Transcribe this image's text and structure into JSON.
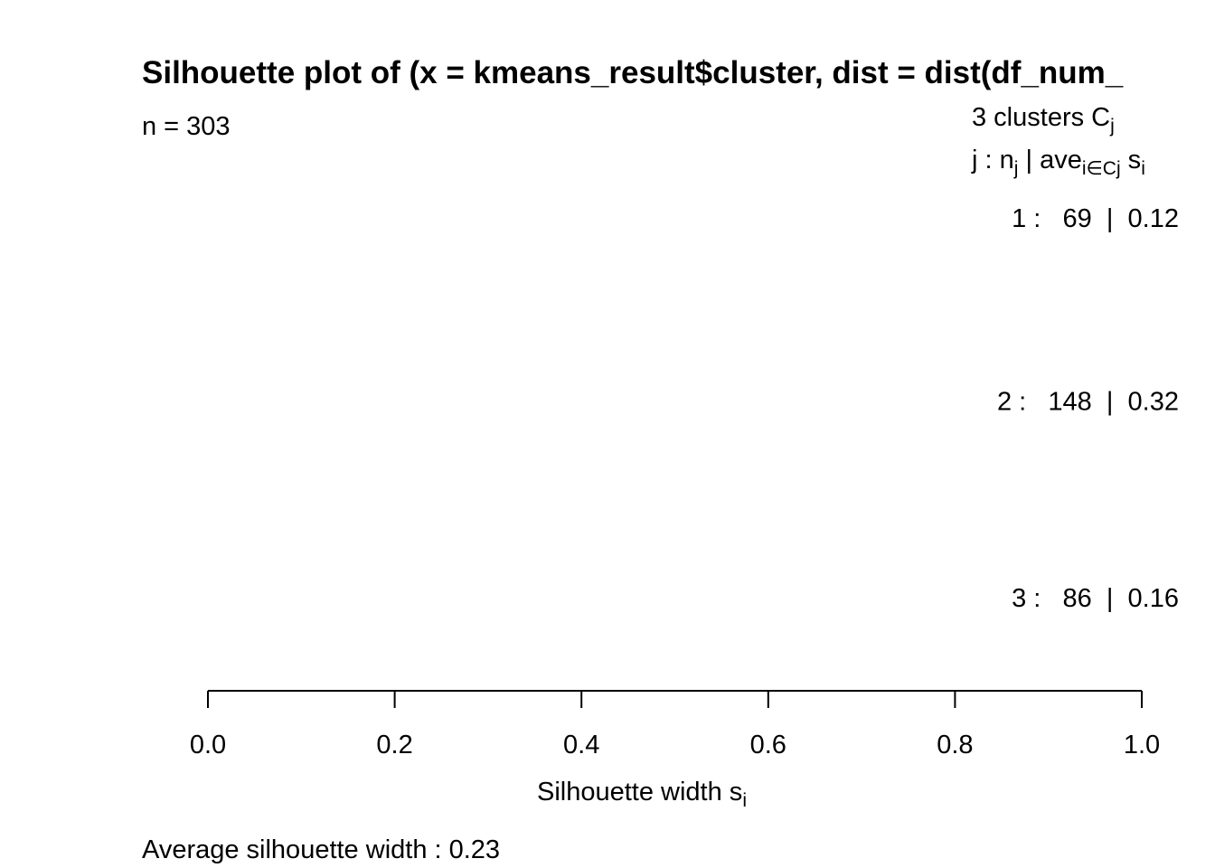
{
  "chart_data": {
    "type": "silhouette",
    "title": "Silhouette plot of (x = kmeans_result$cluster, dist = dist(df_num_",
    "subtitle": "n = 303",
    "cluster_header": [
      "3  clusters  C",
      "j"
    ],
    "column_header": [
      "j :  n",
      "j",
      " | ave",
      "i∈Cj",
      "  s",
      "i"
    ],
    "categories": [
      "1",
      "2",
      "3"
    ],
    "sizes": [
      69,
      148,
      86
    ],
    "values": [
      0.12,
      0.32,
      0.16
    ],
    "value_labels": [
      "1 :   69  |  0.12",
      "2 :   148  |  0.32",
      "3 :   86  |  0.16"
    ],
    "xlabel": [
      "Silhouette width s",
      "i"
    ],
    "xlim": [
      0,
      1
    ],
    "xticks": [
      {
        "value": 0,
        "label": "0.0"
      },
      {
        "value": 0.2,
        "label": "0.2"
      },
      {
        "value": 0.4,
        "label": "0.4"
      },
      {
        "value": 0.6,
        "label": "0.6"
      },
      {
        "value": 0.8,
        "label": "0.8"
      },
      {
        "value": 1,
        "label": "1.0"
      }
    ],
    "footer": "Average silhouette width :  0.23"
  }
}
